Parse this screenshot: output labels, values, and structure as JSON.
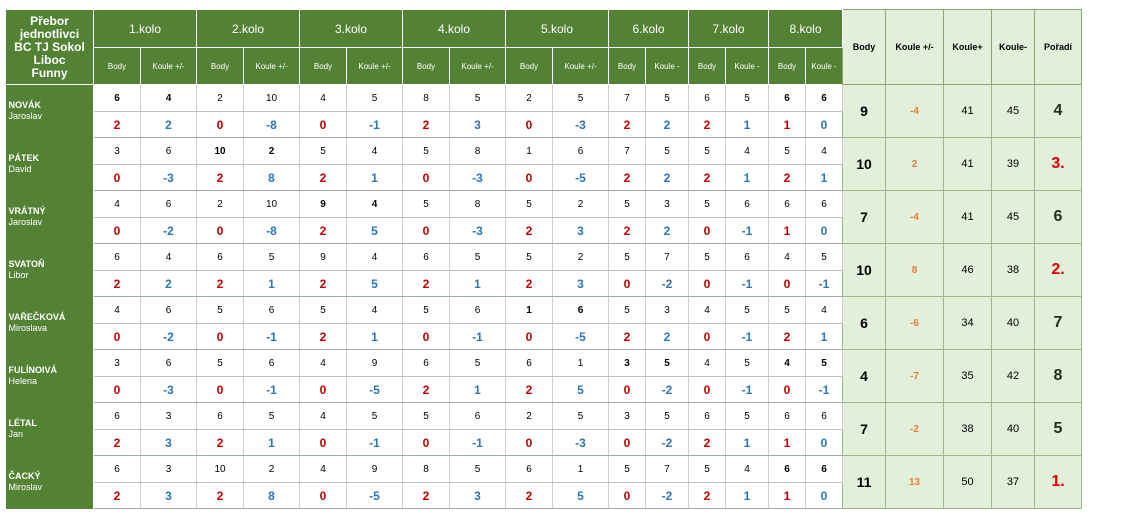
{
  "corner_title": [
    "Přebor",
    "jednotlivci",
    "BC TJ Sokol",
    "Liboc",
    "Funny"
  ],
  "rounds": [
    "1.kolo",
    "2.kolo",
    "3.kolo",
    "4.kolo",
    "5.kolo",
    "6.kolo",
    "7.kolo",
    "8.kolo"
  ],
  "round_sub": [
    [
      "Body",
      "Koule +/-"
    ],
    [
      "Body",
      "Koule +/-"
    ],
    [
      "Body",
      "Koule +/-"
    ],
    [
      "Body",
      "Koule +/-"
    ],
    [
      "Body",
      "Koule +/-"
    ],
    [
      "Body",
      "Koule -"
    ],
    [
      "Body",
      "Koule -"
    ],
    [
      "Body",
      "Koule -"
    ]
  ],
  "summary_headers": [
    "Body",
    "Koule +/-",
    "Koule+",
    "Koule-",
    "Pořadí"
  ],
  "colors": {
    "header_green": "#548235",
    "summary_green": "#e2efda",
    "red": "#c00000",
    "blue": "#2e75b6",
    "orange": "#ed7d31"
  },
  "players": [
    {
      "last": "NOVÁK",
      "first": "Jaroslav",
      "scores": [
        [
          "6",
          "4"
        ],
        [
          "2",
          "10"
        ],
        [
          "4",
          "5"
        ],
        [
          "8",
          "5"
        ],
        [
          "2",
          "5"
        ],
        [
          "7",
          "5"
        ],
        [
          "6",
          "5"
        ],
        [
          "6",
          "6"
        ]
      ],
      "results": [
        [
          "2",
          "2"
        ],
        [
          "0",
          "-8"
        ],
        [
          "0",
          "-1"
        ],
        [
          "2",
          "3"
        ],
        [
          "0",
          "-3"
        ],
        [
          "2",
          "2"
        ],
        [
          "2",
          "1"
        ],
        [
          "1",
          "0"
        ]
      ],
      "body": "9",
      "koule": "-4",
      "plus": "41",
      "minus": "45",
      "poradi": "4"
    },
    {
      "last": "PÁTEK",
      "first": "David",
      "scores": [
        [
          "3",
          "6"
        ],
        [
          "10",
          "2"
        ],
        [
          "5",
          "4"
        ],
        [
          "5",
          "8"
        ],
        [
          "1",
          "6"
        ],
        [
          "7",
          "5"
        ],
        [
          "5",
          "4"
        ],
        [
          "5",
          "4"
        ]
      ],
      "results": [
        [
          "0",
          "-3"
        ],
        [
          "2",
          "8"
        ],
        [
          "2",
          "1"
        ],
        [
          "0",
          "-3"
        ],
        [
          "0",
          "-5"
        ],
        [
          "2",
          "2"
        ],
        [
          "2",
          "1"
        ],
        [
          "2",
          "1"
        ]
      ],
      "body": "10",
      "koule": "2",
      "plus": "41",
      "minus": "39",
      "poradi": "3."
    },
    {
      "last": "VRÁTNÝ",
      "first": "Jaroslav",
      "scores": [
        [
          "4",
          "6"
        ],
        [
          "2",
          "10"
        ],
        [
          "9",
          "4"
        ],
        [
          "5",
          "8"
        ],
        [
          "5",
          "2"
        ],
        [
          "5",
          "3"
        ],
        [
          "5",
          "6"
        ],
        [
          "6",
          "6"
        ]
      ],
      "results": [
        [
          "0",
          "-2"
        ],
        [
          "0",
          "-8"
        ],
        [
          "2",
          "5"
        ],
        [
          "0",
          "-3"
        ],
        [
          "2",
          "3"
        ],
        [
          "2",
          "2"
        ],
        [
          "0",
          "-1"
        ],
        [
          "1",
          "0"
        ]
      ],
      "body": "7",
      "koule": "-4",
      "plus": "41",
      "minus": "45",
      "poradi": "6"
    },
    {
      "last": "SVATOŇ",
      "first": "Libor",
      "scores": [
        [
          "6",
          "4"
        ],
        [
          "6",
          "5"
        ],
        [
          "9",
          "4"
        ],
        [
          "6",
          "5"
        ],
        [
          "5",
          "2"
        ],
        [
          "5",
          "7"
        ],
        [
          "5",
          "6"
        ],
        [
          "4",
          "5"
        ]
      ],
      "results": [
        [
          "2",
          "2"
        ],
        [
          "2",
          "1"
        ],
        [
          "2",
          "5"
        ],
        [
          "2",
          "1"
        ],
        [
          "2",
          "3"
        ],
        [
          "0",
          "-2"
        ],
        [
          "0",
          "-1"
        ],
        [
          "0",
          "-1"
        ]
      ],
      "body": "10",
      "koule": "8",
      "plus": "46",
      "minus": "38",
      "poradi": "2."
    },
    {
      "last": "VAŘEČKOVÁ",
      "first": "Miroslava",
      "scores": [
        [
          "4",
          "6"
        ],
        [
          "5",
          "6"
        ],
        [
          "5",
          "4"
        ],
        [
          "5",
          "6"
        ],
        [
          "1",
          "6"
        ],
        [
          "5",
          "3"
        ],
        [
          "4",
          "5"
        ],
        [
          "5",
          "4"
        ]
      ],
      "results": [
        [
          "0",
          "-2"
        ],
        [
          "0",
          "-1"
        ],
        [
          "2",
          "1"
        ],
        [
          "0",
          "-1"
        ],
        [
          "0",
          "-5"
        ],
        [
          "2",
          "2"
        ],
        [
          "0",
          "-1"
        ],
        [
          "2",
          "1"
        ]
      ],
      "body": "6",
      "koule": "-6",
      "plus": "34",
      "minus": "40",
      "poradi": "7"
    },
    {
      "last": "FULÍNOIVÁ",
      "first": "Helena",
      "scores": [
        [
          "3",
          "6"
        ],
        [
          "5",
          "6"
        ],
        [
          "4",
          "9"
        ],
        [
          "6",
          "5"
        ],
        [
          "6",
          "1"
        ],
        [
          "3",
          "5"
        ],
        [
          "4",
          "5"
        ],
        [
          "4",
          "5"
        ]
      ],
      "results": [
        [
          "0",
          "-3"
        ],
        [
          "0",
          "-1"
        ],
        [
          "0",
          "-5"
        ],
        [
          "2",
          "1"
        ],
        [
          "2",
          "5"
        ],
        [
          "0",
          "-2"
        ],
        [
          "0",
          "-1"
        ],
        [
          "0",
          "-1"
        ]
      ],
      "body": "4",
      "koule": "-7",
      "plus": "35",
      "minus": "42",
      "poradi": "8"
    },
    {
      "last": "LÉTAL",
      "first": "Jan",
      "scores": [
        [
          "6",
          "3"
        ],
        [
          "6",
          "5"
        ],
        [
          "4",
          "5"
        ],
        [
          "5",
          "6"
        ],
        [
          "2",
          "5"
        ],
        [
          "3",
          "5"
        ],
        [
          "6",
          "5"
        ],
        [
          "6",
          "6"
        ]
      ],
      "results": [
        [
          "2",
          "3"
        ],
        [
          "2",
          "1"
        ],
        [
          "0",
          "-1"
        ],
        [
          "0",
          "-1"
        ],
        [
          "0",
          "-3"
        ],
        [
          "0",
          "-2"
        ],
        [
          "2",
          "1"
        ],
        [
          "1",
          "0"
        ]
      ],
      "body": "7",
      "koule": "-2",
      "plus": "38",
      "minus": "40",
      "poradi": "5"
    },
    {
      "last": "ČACKÝ",
      "first": "Miroslav",
      "scores": [
        [
          "6",
          "3"
        ],
        [
          "10",
          "2"
        ],
        [
          "4",
          "9"
        ],
        [
          "8",
          "5"
        ],
        [
          "6",
          "1"
        ],
        [
          "5",
          "7"
        ],
        [
          "5",
          "4"
        ],
        [
          "6",
          "6"
        ]
      ],
      "results": [
        [
          "2",
          "3"
        ],
        [
          "2",
          "8"
        ],
        [
          "0",
          "-5"
        ],
        [
          "2",
          "3"
        ],
        [
          "2",
          "5"
        ],
        [
          "0",
          "-2"
        ],
        [
          "2",
          "1"
        ],
        [
          "1",
          "0"
        ]
      ],
      "body": "11",
      "koule": "13",
      "plus": "50",
      "minus": "37",
      "poradi": "1."
    }
  ]
}
